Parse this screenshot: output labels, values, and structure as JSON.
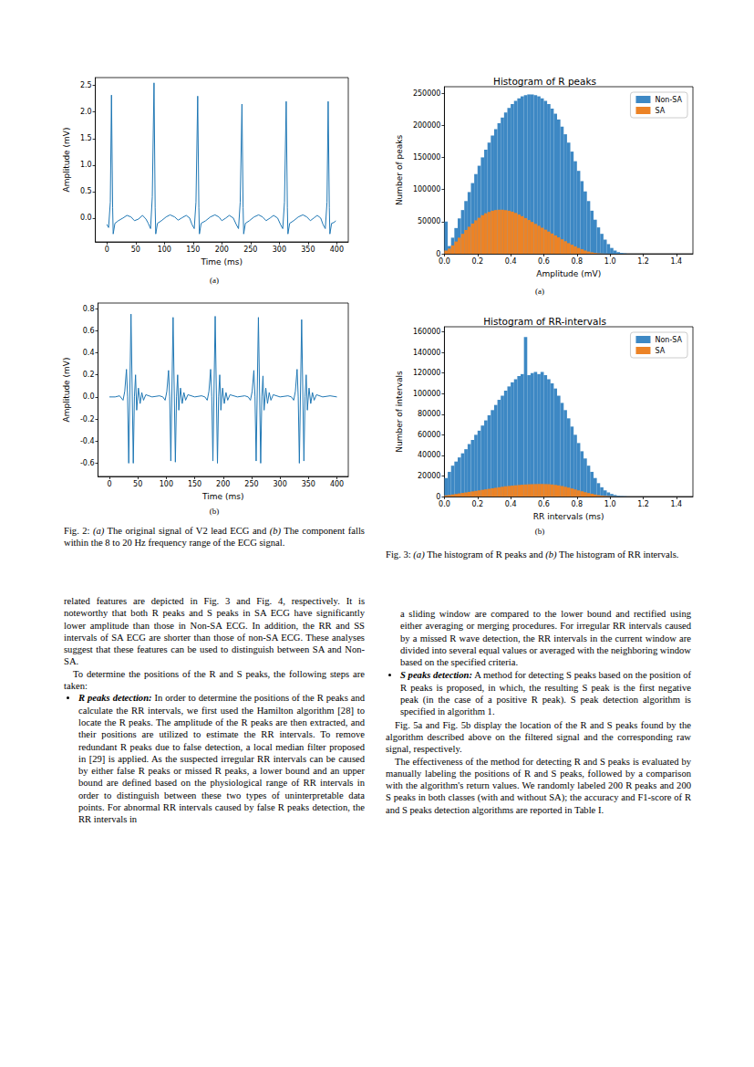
{
  "chart_data": [
    {
      "type": "line",
      "xlabel": "Time (ms)",
      "ylabel": "Amplitude (mV)",
      "color": "#1f77b4",
      "grid": false,
      "xlim": [
        -20,
        420
      ],
      "xticks": [
        0,
        50,
        100,
        150,
        200,
        250,
        300,
        350,
        400
      ],
      "ylim": [
        -0.45,
        2.65
      ],
      "yticks": [
        {
          "value": 0,
          "label": "0.0"
        },
        0.5,
        {
          "value": 1,
          "label": "1.0"
        },
        1.5,
        {
          "value": 2,
          "label": "2.0"
        },
        2.5
      ],
      "x": [
        0,
        3,
        6,
        8,
        10,
        11,
        14,
        20,
        28,
        35,
        42,
        48,
        55,
        62,
        68,
        72,
        76,
        79,
        82,
        84,
        85,
        88,
        95,
        103,
        110,
        118,
        124,
        130,
        138,
        144,
        148,
        152,
        155,
        158,
        160,
        161,
        164,
        172,
        180,
        188,
        195,
        200,
        207,
        213,
        220,
        225,
        229,
        232,
        235,
        237,
        238,
        241,
        248,
        256,
        264,
        271,
        277,
        284,
        290,
        297,
        302,
        306,
        309,
        312,
        314,
        315,
        318,
        325,
        333,
        341,
        348,
        354,
        360,
        366,
        372,
        376,
        380,
        383,
        385,
        387,
        388,
        391,
        396,
        398
      ],
      "values": [
        -0.12,
        -0.18,
        0.3,
        2.32,
        0.2,
        -0.3,
        -0.1,
        -0.05,
        0.0,
        0.05,
        0.02,
        -0.05,
        -0.02,
        0.05,
        -0.02,
        -0.1,
        -0.2,
        0.4,
        2.55,
        0.2,
        -0.3,
        -0.1,
        -0.05,
        0.02,
        0.06,
        0.02,
        -0.04,
        0.0,
        0.05,
        0.0,
        -0.12,
        -0.2,
        0.3,
        2.3,
        0.2,
        -0.3,
        -0.1,
        -0.05,
        0.02,
        0.06,
        0.02,
        -0.05,
        0.0,
        0.05,
        0.0,
        -0.12,
        -0.2,
        0.3,
        2.15,
        0.2,
        -0.3,
        -0.1,
        -0.05,
        0.02,
        0.06,
        0.02,
        -0.05,
        0.0,
        0.05,
        0.0,
        -0.12,
        -0.2,
        0.3,
        2.2,
        0.2,
        -0.3,
        -0.1,
        -0.05,
        0.02,
        0.06,
        0.02,
        -0.05,
        0.0,
        0.05,
        0.0,
        -0.12,
        -0.2,
        0.3,
        2.2,
        0.2,
        -0.3,
        -0.1,
        -0.08,
        -0.05
      ]
    },
    {
      "type": "line",
      "xlabel": "Time (ms)",
      "ylabel": "Amplitude (mV)",
      "color": "#1f77b4",
      "grid": false,
      "xlim": [
        -20,
        420
      ],
      "xticks": [
        0,
        50,
        100,
        150,
        200,
        250,
        300,
        350,
        400
      ],
      "ylim": [
        -0.72,
        0.85
      ],
      "yticks": [
        -0.6,
        -0.4,
        -0.2,
        {
          "value": 0,
          "label": "0.0"
        },
        0.2,
        0.4,
        0.6,
        0.8
      ],
      "x": [
        0,
        10,
        18,
        24,
        27,
        30,
        32,
        34,
        38,
        42,
        44,
        46,
        48,
        51,
        54,
        57,
        60,
        64,
        75,
        88,
        94,
        98,
        101,
        104,
        106,
        108,
        112,
        116,
        118,
        120,
        122,
        125,
        128,
        131,
        134,
        138,
        150,
        162,
        168,
        172,
        175,
        178,
        180,
        182,
        186,
        190,
        192,
        194,
        196,
        199,
        202,
        205,
        208,
        212,
        225,
        238,
        244,
        248,
        251,
        254,
        256,
        258,
        262,
        266,
        268,
        270,
        272,
        275,
        278,
        281,
        284,
        288,
        300,
        314,
        320,
        324,
        327,
        330,
        332,
        334,
        338,
        342,
        344,
        346,
        348,
        351,
        354,
        357,
        360,
        364,
        375,
        388,
        400
      ],
      "values": [
        0.0,
        0.0,
        0.01,
        -0.03,
        0.05,
        0.25,
        0.0,
        -0.6,
        0.75,
        -0.6,
        0.0,
        0.2,
        -0.12,
        0.08,
        -0.06,
        0.04,
        -0.03,
        0.02,
        0.0,
        0.01,
        0.0,
        -0.03,
        0.05,
        0.24,
        0.0,
        -0.58,
        0.72,
        -0.59,
        0.0,
        0.2,
        -0.12,
        0.08,
        -0.06,
        0.04,
        -0.03,
        0.02,
        0.0,
        0.01,
        0.0,
        -0.03,
        0.05,
        0.25,
        0.0,
        -0.58,
        0.73,
        -0.6,
        0.0,
        0.2,
        -0.12,
        0.08,
        -0.06,
        0.04,
        -0.03,
        0.02,
        0.0,
        0.01,
        0.0,
        -0.03,
        0.05,
        0.24,
        0.0,
        -0.58,
        0.72,
        -0.6,
        0.0,
        0.19,
        -0.12,
        0.08,
        -0.06,
        0.04,
        -0.03,
        0.02,
        0.0,
        0.01,
        0.0,
        -0.03,
        0.05,
        0.25,
        0.0,
        -0.6,
        0.7,
        -0.58,
        0.0,
        0.2,
        -0.12,
        0.08,
        -0.06,
        0.04,
        -0.03,
        0.02,
        0.0,
        0.01,
        0.0
      ]
    },
    {
      "type": "histogram",
      "title": "Histogram of R peaks",
      "xlabel": "Amplitude (mV)",
      "ylabel": "Number of peaks",
      "grid": false,
      "stacked": false,
      "legend": "upper right",
      "xlim": [
        0,
        1.5
      ],
      "xticks": [
        {
          "value": 0,
          "label": "0.0"
        },
        0.2,
        0.4,
        0.6,
        0.8,
        {
          "value": 1,
          "label": "1.0"
        },
        1.2,
        1.4
      ],
      "ylim": [
        0,
        260000
      ],
      "yticks": [
        0,
        50000,
        100000,
        150000,
        200000,
        250000
      ],
      "bins": [
        0,
        0.02,
        0.04,
        0.06,
        0.08,
        0.1,
        0.12,
        0.14,
        0.16,
        0.18,
        0.2,
        0.22,
        0.24,
        0.26,
        0.28,
        0.3,
        0.32,
        0.34,
        0.36,
        0.38,
        0.4,
        0.42,
        0.44,
        0.46,
        0.48,
        0.5,
        0.52,
        0.54,
        0.56,
        0.58,
        0.6,
        0.62,
        0.64,
        0.66,
        0.68,
        0.7,
        0.72,
        0.74,
        0.76,
        0.78,
        0.8,
        0.82,
        0.84,
        0.86,
        0.88,
        0.9,
        0.92,
        0.94,
        0.96,
        0.98,
        1.0,
        1.02,
        1.04,
        1.06,
        1.08,
        1.1
      ],
      "series": [
        {
          "name": "Non-SA",
          "color": "#3d88c4",
          "values": [
            50000,
            12000,
            25000,
            40000,
            55000,
            68000,
            82000,
            96000,
            110000,
            124000,
            137000,
            150000,
            162000,
            173000,
            184000,
            194000,
            203000,
            212000,
            220000,
            227000,
            233000,
            238000,
            242000,
            245000,
            247000,
            248000,
            248000,
            247000,
            245000,
            242000,
            238000,
            233000,
            226000,
            218000,
            209000,
            198000,
            186000,
            173000,
            159000,
            144000,
            129000,
            113000,
            97000,
            82000,
            67000,
            53000,
            41000,
            31000,
            22000,
            15000,
            9000,
            5000,
            2500,
            1200,
            500
          ]
        },
        {
          "name": "SA",
          "color": "#ec8326",
          "values": [
            5000,
            8000,
            13000,
            19000,
            25000,
            31000,
            37000,
            42000,
            47000,
            52000,
            56000,
            60000,
            63000,
            65000,
            67000,
            68000,
            68500,
            68500,
            68000,
            67000,
            65500,
            63500,
            61000,
            58500,
            55500,
            52500,
            49500,
            46500,
            43500,
            40500,
            37500,
            34500,
            31500,
            28500,
            25500,
            22500,
            19500,
            16500,
            14000,
            11500,
            9000,
            7000,
            5000,
            3500,
            2200,
            1300,
            700,
            400,
            200,
            100,
            50,
            20,
            10,
            5,
            0
          ]
        }
      ]
    },
    {
      "type": "histogram",
      "title": "Histogram of RR-intervals",
      "xlabel": "RR intervals (ms)",
      "ylabel": "Number of intervals",
      "grid": false,
      "stacked": false,
      "legend": "upper right",
      "xlim": [
        0,
        1.5
      ],
      "xticks": [
        {
          "value": 0,
          "label": "0.0"
        },
        0.2,
        0.4,
        0.6,
        0.8,
        {
          "value": 1,
          "label": "1.0"
        },
        1.2,
        1.4
      ],
      "ylim": [
        0,
        165000
      ],
      "yticks": [
        0,
        20000,
        40000,
        60000,
        80000,
        100000,
        120000,
        140000,
        160000
      ],
      "bins": [
        0,
        0.02,
        0.04,
        0.06,
        0.08,
        0.1,
        0.12,
        0.14,
        0.16,
        0.18,
        0.2,
        0.22,
        0.24,
        0.26,
        0.28,
        0.3,
        0.32,
        0.34,
        0.36,
        0.38,
        0.4,
        0.42,
        0.44,
        0.46,
        0.48,
        0.5,
        0.52,
        0.54,
        0.56,
        0.58,
        0.6,
        0.62,
        0.64,
        0.66,
        0.68,
        0.7,
        0.72,
        0.74,
        0.76,
        0.78,
        0.8,
        0.82,
        0.84,
        0.86,
        0.88,
        0.9,
        0.92,
        0.94,
        0.96,
        0.98,
        1.0,
        1.02,
        1.04,
        1.06,
        1.08,
        1.1
      ],
      "series": [
        {
          "name": "Non-SA",
          "color": "#3d88c4",
          "values": [
            18000,
            24000,
            30000,
            34000,
            38000,
            42000,
            46000,
            51000,
            55000,
            60000,
            64000,
            69000,
            74000,
            79000,
            84000,
            89000,
            94000,
            98000,
            103000,
            107000,
            111000,
            114000,
            117000,
            119000,
            155000,
            118000,
            120000,
            121000,
            119000,
            121000,
            118000,
            114000,
            110000,
            105000,
            98000,
            91000,
            84000,
            76000,
            68000,
            60000,
            52000,
            44000,
            37000,
            30000,
            24000,
            18000,
            13000,
            9000,
            6000,
            4000,
            2500,
            1500,
            800,
            400,
            200
          ]
        },
        {
          "name": "SA",
          "color": "#ec8326",
          "values": [
            1000,
            1500,
            2000,
            2500,
            3000,
            3500,
            4000,
            4500,
            5000,
            5500,
            6000,
            6500,
            7000,
            7500,
            8000,
            8500,
            9000,
            9500,
            10000,
            10300,
            10600,
            10900,
            11200,
            11500,
            11700,
            11900,
            12000,
            12100,
            12200,
            12200,
            12100,
            12000,
            11700,
            11300,
            10800,
            10200,
            9500,
            8700,
            7800,
            6900,
            6000,
            5100,
            4200,
            3400,
            2700,
            2000,
            1400,
            900,
            600,
            400,
            250,
            150,
            80,
            40,
            20
          ]
        }
      ]
    }
  ],
  "panel_labels": [
    "(a)",
    "(b)",
    "(a)",
    "(b)"
  ],
  "captions": [
    [
      {
        "text": "Fig. 2: ",
        "style": "normal"
      },
      {
        "text": "(a)",
        "style": "italic"
      },
      {
        "text": " The original signal of V2 lead ECG and ",
        "style": "normal"
      },
      {
        "text": "(b)",
        "style": "italic"
      },
      {
        "text": " The component falls within the 8 to 20 Hz frequency range of the ECG signal.",
        "style": "normal"
      }
    ],
    [
      {
        "text": "Fig. 3: ",
        "style": "normal"
      },
      {
        "text": "(a)",
        "style": "italic"
      },
      {
        "text": " The histogram of R peaks and ",
        "style": "normal"
      },
      {
        "text": "(b)",
        "style": "italic"
      },
      {
        "text": " The histogram of RR intervals.",
        "style": "normal"
      }
    ]
  ],
  "body": {
    "left": [
      {
        "kind": "paragraph_continued",
        "text": "related features are depicted in Fig. 3 and Fig. 4, respectively. It is noteworthy that both R peaks and S peaks in SA ECG have significantly lower amplitude than those in Non-SA ECG. In addition, the RR and SS intervals of SA ECG are shorter than those of non-SA ECG. These analyses suggest that these features can be used to distinguish between SA and Non-SA."
      },
      {
        "kind": "paragraph",
        "text": "To determine the positions of the R and S peaks, the following steps are taken:"
      },
      {
        "kind": "bullet",
        "lead": "R peaks detection:",
        "text": " In order to determine the positions of the R peaks and calculate the RR intervals, we first used the Hamilton algorithm [28] to locate the R peaks. The amplitude of the R peaks are then extracted, and their positions are utilized to estimate the RR intervals. To remove redundant R peaks due to false detection, a local median filter proposed in [29] is applied. As the suspected irregular RR intervals can be caused by either false R peaks or missed R peaks, a lower bound and an upper bound are defined based on the physiological range of RR intervals in order to distinguish between these two types of uninterpretable data points. For abnormal RR intervals caused by false R peaks detection, the RR intervals in"
      }
    ],
    "right": [
      {
        "kind": "bullet_continued",
        "text": "a sliding window are compared to the lower bound and rectified using either averaging or merging procedures. For irregular RR intervals caused by a missed R wave detection, the RR intervals in the current window are divided into several equal values or averaged with the neighboring window based on the specified criteria."
      },
      {
        "kind": "bullet",
        "lead": "S peaks detection:",
        "text": " A method for detecting S peaks based on the position of R peaks is proposed, in which, the resulting S peak is the first negative peak (in the case of a positive R peak). S peak detection algorithm is specified in algorithm 1."
      },
      {
        "kind": "paragraph",
        "text": "Fig. 5a and Fig. 5b display the location of the R and S peaks found by the algorithm described above on the filtered signal and the corresponding raw signal, respectively."
      },
      {
        "kind": "paragraph",
        "text": "The effectiveness of the method for detecting R and S peaks is evaluated by manually labeling the positions of R and S peaks, followed by a comparison with the algorithm's return values. We randomly labeled 200 R peaks and 200 S peaks in both classes (with and without SA); the accuracy and F1-score of R and S peaks detection algorithms are reported in Table I."
      }
    ]
  }
}
